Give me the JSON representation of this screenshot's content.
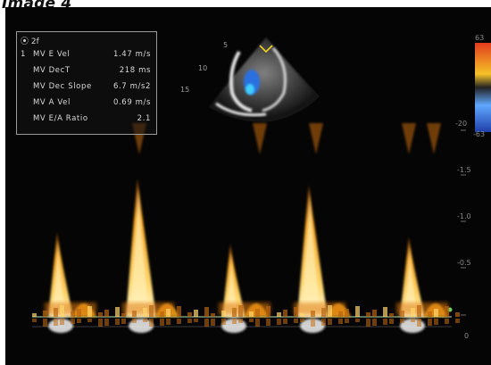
{
  "figure": {
    "title": "Image 4"
  },
  "measurements": {
    "header": "⦿ 2f",
    "rows": [
      {
        "index": "1",
        "label": "MV E Vel",
        "value": "1.47 m/s"
      },
      {
        "index": "",
        "label": "MV DecT",
        "value": "218 ms"
      },
      {
        "index": "",
        "label": "MV Dec Slope",
        "value": "6.7 m/s2"
      },
      {
        "index": "",
        "label": "MV A Vel",
        "value": "0.69 m/s"
      },
      {
        "index": "",
        "label": "MV E/A Ratio",
        "value": "2.1"
      }
    ]
  },
  "velocity_scale": {
    "top": "63",
    "bottom": "-63",
    "ticks": [
      "-20",
      "-1.5",
      "-1.0",
      "-0.5",
      "0"
    ]
  },
  "sector_depth_labels": [
    "5",
    "10",
    "15"
  ],
  "colors": {
    "background": "#050505",
    "doppler_bright": "#fff6cf",
    "doppler_mid": "#f4a21f",
    "doppler_dark": "#7a3a06",
    "baseline": "#8fb890",
    "color_bar_top": "#e23b1e",
    "color_bar_mid": "#f5c227",
    "color_bar_low": "#1e6bd8"
  },
  "icons": {
    "sector_marker": "v-marker-icon",
    "header_icon": "probe-icon"
  }
}
